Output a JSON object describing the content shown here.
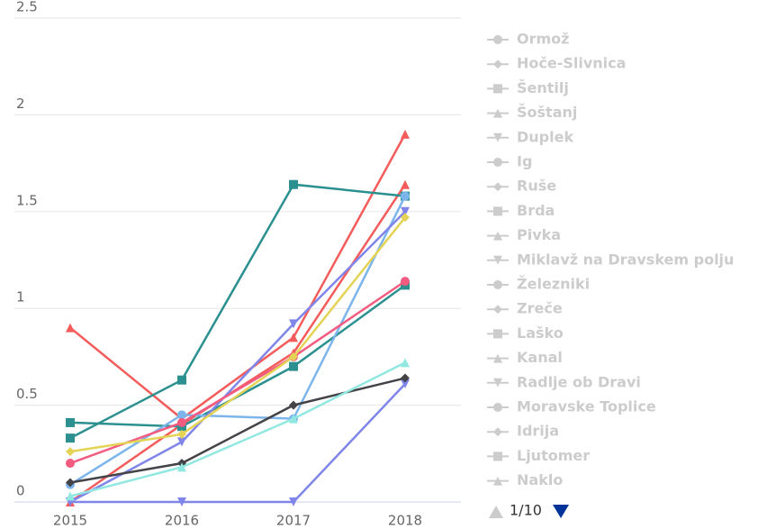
{
  "chart_data": {
    "type": "line",
    "categories": [
      "2015",
      "2016",
      "2017",
      "2018"
    ],
    "ylim": [
      0,
      2.5
    ],
    "yticks": [
      0,
      0.5,
      1,
      1.5,
      2,
      2.5
    ],
    "grid": true,
    "series": [
      {
        "color": "#f45b5b",
        "marker": "triangle",
        "values": [
          0.9,
          0.43,
          0.85,
          1.9
        ]
      },
      {
        "color": "#f45b5b",
        "marker": "triangle",
        "values": [
          0,
          0.4,
          0.77,
          1.64
        ]
      },
      {
        "color": "#2b908f",
        "marker": "square",
        "values": [
          0.33,
          0.63,
          1.64,
          1.58
        ]
      },
      {
        "color": "#2b908f",
        "marker": "square",
        "values": [
          0.41,
          0.39,
          0.7,
          1.12
        ]
      },
      {
        "color": "#7cb5ec",
        "marker": "circle",
        "values": [
          0.09,
          0.45,
          0.43,
          1.58
        ]
      },
      {
        "color": "#8085e9",
        "marker": "triangle-down",
        "values": [
          0,
          0.31,
          0.92,
          1.5
        ]
      },
      {
        "color": "#8085e9",
        "marker": "triangle-down",
        "values": [
          0,
          0,
          0,
          0.61
        ]
      },
      {
        "color": "#f15c80",
        "marker": "circle",
        "values": [
          0.2,
          0.41,
          0.75,
          1.14
        ]
      },
      {
        "color": "#e4d354",
        "marker": "diamond",
        "values": [
          0.26,
          0.35,
          0.75,
          1.47
        ]
      },
      {
        "color": "#434348",
        "marker": "diamond",
        "values": [
          0.1,
          0.2,
          0.5,
          0.64
        ]
      },
      {
        "color": "#91e8e1",
        "marker": "triangle",
        "values": [
          0.03,
          0.18,
          0.43,
          0.72
        ]
      }
    ],
    "legend": {
      "position": "right",
      "items": [
        {
          "name": "Ormož",
          "marker": "circle"
        },
        {
          "name": "Hoče-Slivnica",
          "marker": "diamond"
        },
        {
          "name": "Šentilj",
          "marker": "square"
        },
        {
          "name": "Šoštanj",
          "marker": "triangle"
        },
        {
          "name": "Duplek",
          "marker": "triangle-down"
        },
        {
          "name": "Ig",
          "marker": "circle"
        },
        {
          "name": "Ruše",
          "marker": "diamond"
        },
        {
          "name": "Brda",
          "marker": "square"
        },
        {
          "name": "Pivka",
          "marker": "triangle"
        },
        {
          "name": "Miklavž na Dravskem polju",
          "marker": "triangle-down"
        },
        {
          "name": "Železniki",
          "marker": "circle"
        },
        {
          "name": "Zreče",
          "marker": "diamond"
        },
        {
          "name": "Laško",
          "marker": "square"
        },
        {
          "name": "Kanal",
          "marker": "triangle"
        },
        {
          "name": "Radlje ob Dravi",
          "marker": "triangle-down"
        },
        {
          "name": "Moravske Toplice",
          "marker": "circle"
        },
        {
          "name": "Idrija",
          "marker": "diamond"
        },
        {
          "name": "Ljutomer",
          "marker": "square"
        },
        {
          "name": "Naklo",
          "marker": "triangle"
        }
      ],
      "page": "1/10"
    }
  }
}
